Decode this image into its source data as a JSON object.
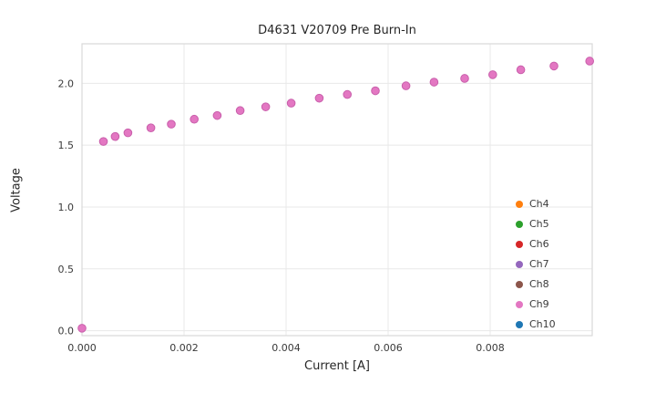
{
  "chart_data": {
    "type": "scatter",
    "title": "D4631 V20709 Pre Burn-In",
    "xlabel": "Current [A]",
    "ylabel": "Voltage",
    "xlim": [
      0,
      0.01
    ],
    "ylim": [
      -0.04,
      2.32
    ],
    "grid": true,
    "legend_position": "lower right",
    "x_ticks": [
      {
        "v": 0.0,
        "label": "0.000"
      },
      {
        "v": 0.002,
        "label": "0.002"
      },
      {
        "v": 0.004,
        "label": "0.004"
      },
      {
        "v": 0.006,
        "label": "0.006"
      },
      {
        "v": 0.008,
        "label": "0.008"
      }
    ],
    "y_ticks": [
      {
        "v": 0.0,
        "label": "0.0"
      },
      {
        "v": 0.5,
        "label": "0.5"
      },
      {
        "v": 1.0,
        "label": "1.0"
      },
      {
        "v": 1.5,
        "label": "1.5"
      },
      {
        "v": 2.0,
        "label": "2.0"
      }
    ],
    "marker_color": "#e377c2",
    "marker_edge_color": "#c95fab",
    "grid_color": "#e8e8e8",
    "border_color": "#d9d9d9",
    "series": [
      {
        "name": "Ch4",
        "color": "#ff7f0e"
      },
      {
        "name": "Ch5",
        "color": "#2ca02c"
      },
      {
        "name": "Ch6",
        "color": "#d62728"
      },
      {
        "name": "Ch7",
        "color": "#9467bd"
      },
      {
        "name": "Ch8",
        "color": "#8c564b"
      },
      {
        "name": "Ch9",
        "color": "#e377c2"
      },
      {
        "name": "Ch10",
        "color": "#1f77b4"
      }
    ],
    "points": [
      [
        0.0,
        0.02
      ],
      [
        0.00042,
        1.53
      ],
      [
        0.00065,
        1.57
      ],
      [
        0.0009,
        1.6
      ],
      [
        0.00135,
        1.64
      ],
      [
        0.00175,
        1.67
      ],
      [
        0.0022,
        1.71
      ],
      [
        0.00265,
        1.74
      ],
      [
        0.0031,
        1.78
      ],
      [
        0.0036,
        1.81
      ],
      [
        0.0041,
        1.84
      ],
      [
        0.00465,
        1.88
      ],
      [
        0.0052,
        1.91
      ],
      [
        0.00575,
        1.94
      ],
      [
        0.00635,
        1.98
      ],
      [
        0.0069,
        2.01
      ],
      [
        0.0075,
        2.04
      ],
      [
        0.00805,
        2.07
      ],
      [
        0.0086,
        2.11
      ],
      [
        0.00925,
        2.14
      ],
      [
        0.00995,
        2.18
      ]
    ]
  }
}
